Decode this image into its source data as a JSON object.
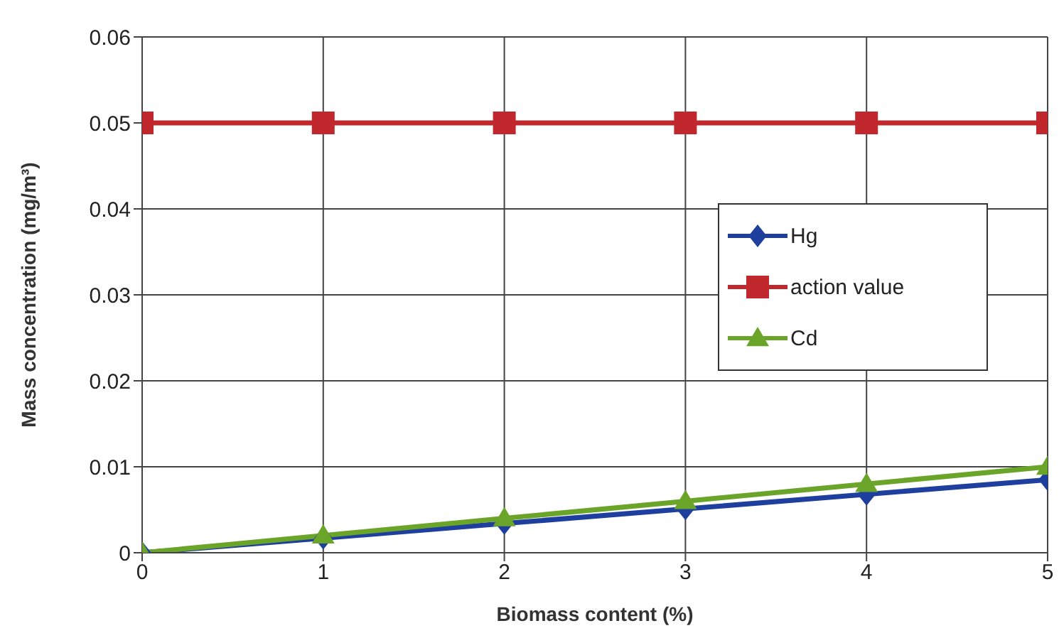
{
  "chart_data": {
    "type": "line",
    "xlabel": "Biomass content (%)",
    "ylabel": "Mass concentration (mg/m³)",
    "x": [
      0,
      1,
      2,
      3,
      4,
      5
    ],
    "series": [
      {
        "name": "Hg",
        "color": "#1f3f9f",
        "marker": "diamond",
        "values": [
          0,
          0.0017,
          0.0034,
          0.0051,
          0.0068,
          0.0085
        ]
      },
      {
        "name": "action value",
        "color": "#c0282d",
        "marker": "square",
        "values": [
          0.05,
          0.05,
          0.05,
          0.05,
          0.05,
          0.05
        ]
      },
      {
        "name": "Cd",
        "color": "#6aa52a",
        "marker": "triangle",
        "values": [
          0,
          0.002,
          0.004,
          0.006,
          0.008,
          0.01
        ]
      }
    ],
    "xlim": [
      0,
      5
    ],
    "xticks": [
      0,
      1,
      2,
      3,
      4,
      5
    ],
    "ylim": [
      0,
      0.06
    ],
    "yticks": [
      0,
      0.01,
      0.02,
      0.03,
      0.04,
      0.05,
      0.06
    ],
    "grid": true,
    "legend": "right",
    "line_style": "solid"
  }
}
